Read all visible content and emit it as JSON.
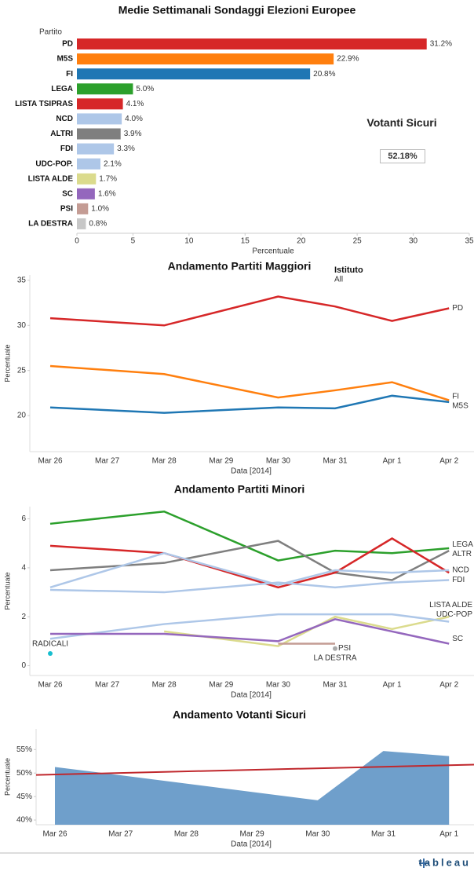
{
  "chart_data": [
    {
      "type": "hbar",
      "title": "Medie Settimanali Sondaggi Elezioni Europee",
      "ylabel": "Partito",
      "xlabel": "Percentuale",
      "categories": [
        "PD",
        "M5S",
        "FI",
        "LEGA",
        "LISTA TSIPRAS",
        "NCD",
        "ALTRI",
        "FDI",
        "UDC-POP.",
        "LISTA ALDE",
        "SC",
        "PSI",
        "LA DESTRA"
      ],
      "values": [
        31.2,
        22.9,
        20.8,
        5.0,
        4.1,
        4.0,
        3.9,
        3.3,
        2.1,
        1.7,
        1.6,
        1.0,
        0.8
      ],
      "value_labels": [
        "31.2%",
        "22.9%",
        "20.8%",
        "5.0%",
        "4.1%",
        "4.0%",
        "3.9%",
        "3.3%",
        "2.1%",
        "1.7%",
        "1.6%",
        "1.0%",
        "0.8%"
      ],
      "colors": [
        "#d62728",
        "#ff7f0e",
        "#1f77b4",
        "#2ca02c",
        "#d62728",
        "#aec7e8",
        "#7f7f7f",
        "#aec7e8",
        "#aec7e8",
        "#dbdb8d",
        "#9467bd",
        "#c49c94",
        "#c7c7c7"
      ],
      "xlim": [
        0,
        35
      ],
      "xticks": [
        0,
        5,
        10,
        15,
        20,
        25,
        30,
        35
      ],
      "grid": false
    },
    {
      "type": "line",
      "title": "Andamento Partiti Maggiori",
      "xlabel": "Data [2014]",
      "ylabel": "Percentuale",
      "legend": {
        "title": "Istituto",
        "value": "All"
      },
      "xticks": [
        "Mar 26",
        "Mar 27",
        "Mar 28",
        "Mar 29",
        "Mar 30",
        "Mar 31",
        "Apr 1",
        "Apr 2"
      ],
      "x": [
        "Mar 26",
        "Mar 28",
        "Mar 30",
        "Mar 31",
        "Apr 1",
        "Apr 2"
      ],
      "ylim": [
        16,
        35.6
      ],
      "yticks": [
        20,
        25,
        30,
        35
      ],
      "grid": false,
      "series": [
        {
          "name": "PD",
          "color": "#d62728",
          "values": [
            30.8,
            30.0,
            33.2,
            32.1,
            30.5,
            31.9
          ]
        },
        {
          "name": "FI",
          "color": "#ff7f0e",
          "values": [
            25.5,
            24.6,
            22.0,
            22.8,
            23.7,
            21.7
          ]
        },
        {
          "name": "M5S",
          "color": "#1f77b4",
          "values": [
            20.9,
            20.3,
            20.9,
            20.8,
            22.2,
            21.5
          ]
        }
      ]
    },
    {
      "type": "line",
      "title": "Andamento Partiti Minori",
      "xlabel": "Data [2014]",
      "ylabel": "Percentuale",
      "xticks": [
        "Mar 26",
        "Mar 27",
        "Mar 28",
        "Mar 29",
        "Mar 30",
        "Mar 31",
        "Apr 1",
        "Apr 2"
      ],
      "x": [
        "Mar 26",
        "Mar 28",
        "Mar 30",
        "Mar 31",
        "Apr 1",
        "Apr 2"
      ],
      "ylim": [
        -0.4,
        6.5
      ],
      "yticks": [
        0,
        2,
        4,
        6
      ],
      "grid": false,
      "series": [
        {
          "name": "LEGA",
          "color": "#2ca02c",
          "values": [
            5.8,
            6.3,
            4.3,
            4.7,
            4.6,
            4.8
          ]
        },
        {
          "name": "ALTR",
          "color": "#7f7f7f",
          "values": [
            3.9,
            4.2,
            5.1,
            3.8,
            3.5,
            4.7
          ]
        },
        {
          "color": "#d62728",
          "values": [
            4.9,
            4.6,
            3.2,
            3.8,
            5.2,
            3.8
          ]
        },
        {
          "name": "NCD",
          "color": "#aec7e8",
          "values": [
            3.2,
            4.6,
            3.3,
            3.9,
            3.8,
            3.9
          ]
        },
        {
          "name": "FDI",
          "color": "#aec7e8",
          "values": [
            3.1,
            3.0,
            3.4,
            3.2,
            3.4,
            3.5
          ]
        },
        {
          "name": "LISTA ALDE",
          "color": "#dbdb8d",
          "values": [
            null,
            1.4,
            0.8,
            2.0,
            1.5,
            2.0
          ]
        },
        {
          "name": "UDC-POP",
          "color": "#aec7e8",
          "values": [
            1.1,
            1.7,
            2.1,
            2.1,
            2.1,
            1.8
          ]
        },
        {
          "name": "SC",
          "color": "#9467bd",
          "values": [
            1.3,
            1.3,
            1.0,
            1.9,
            1.4,
            0.9
          ]
        },
        {
          "name": "PSI",
          "color": "#c49c94",
          "values": [
            null,
            null,
            0.9,
            0.9,
            null,
            null
          ]
        },
        {
          "name": "LA DESTRA",
          "color": "#aaaaaa",
          "values": [
            null,
            null,
            null,
            0.7,
            null,
            null
          ]
        },
        {
          "name": "RADICALI",
          "color": "#17becf",
          "values": [
            0.5,
            null,
            null,
            null,
            null,
            null
          ]
        }
      ]
    },
    {
      "type": "area",
      "title": "Andamento Votanti Sicuri",
      "xlabel": "Data [2014]",
      "ylabel": "Percentuale",
      "xticks": [
        "Mar 26",
        "Mar 27",
        "Mar 28",
        "Mar 29",
        "Mar 30",
        "Mar 31",
        "Apr 1"
      ],
      "x": [
        "Mar 26",
        "Mar 30",
        "Mar 31",
        "Apr 1"
      ],
      "values": [
        51.3,
        44.2,
        54.7,
        53.6
      ],
      "color": "#6f9fcb",
      "trend": {
        "color": "#c0282d",
        "values": [
          49.6,
          51.8
        ]
      },
      "ylim": [
        39,
        59.4
      ],
      "yticks": [
        {
          "value": 40,
          "label": "40%"
        },
        {
          "value": 45,
          "label": "45%"
        },
        {
          "value": 50,
          "label": "50%"
        },
        {
          "value": 55,
          "label": "55%"
        }
      ],
      "grid": false
    }
  ],
  "card": {
    "title": "Votanti Sicuri",
    "value": "52.18%"
  },
  "footer": {
    "logo": "tableau"
  }
}
